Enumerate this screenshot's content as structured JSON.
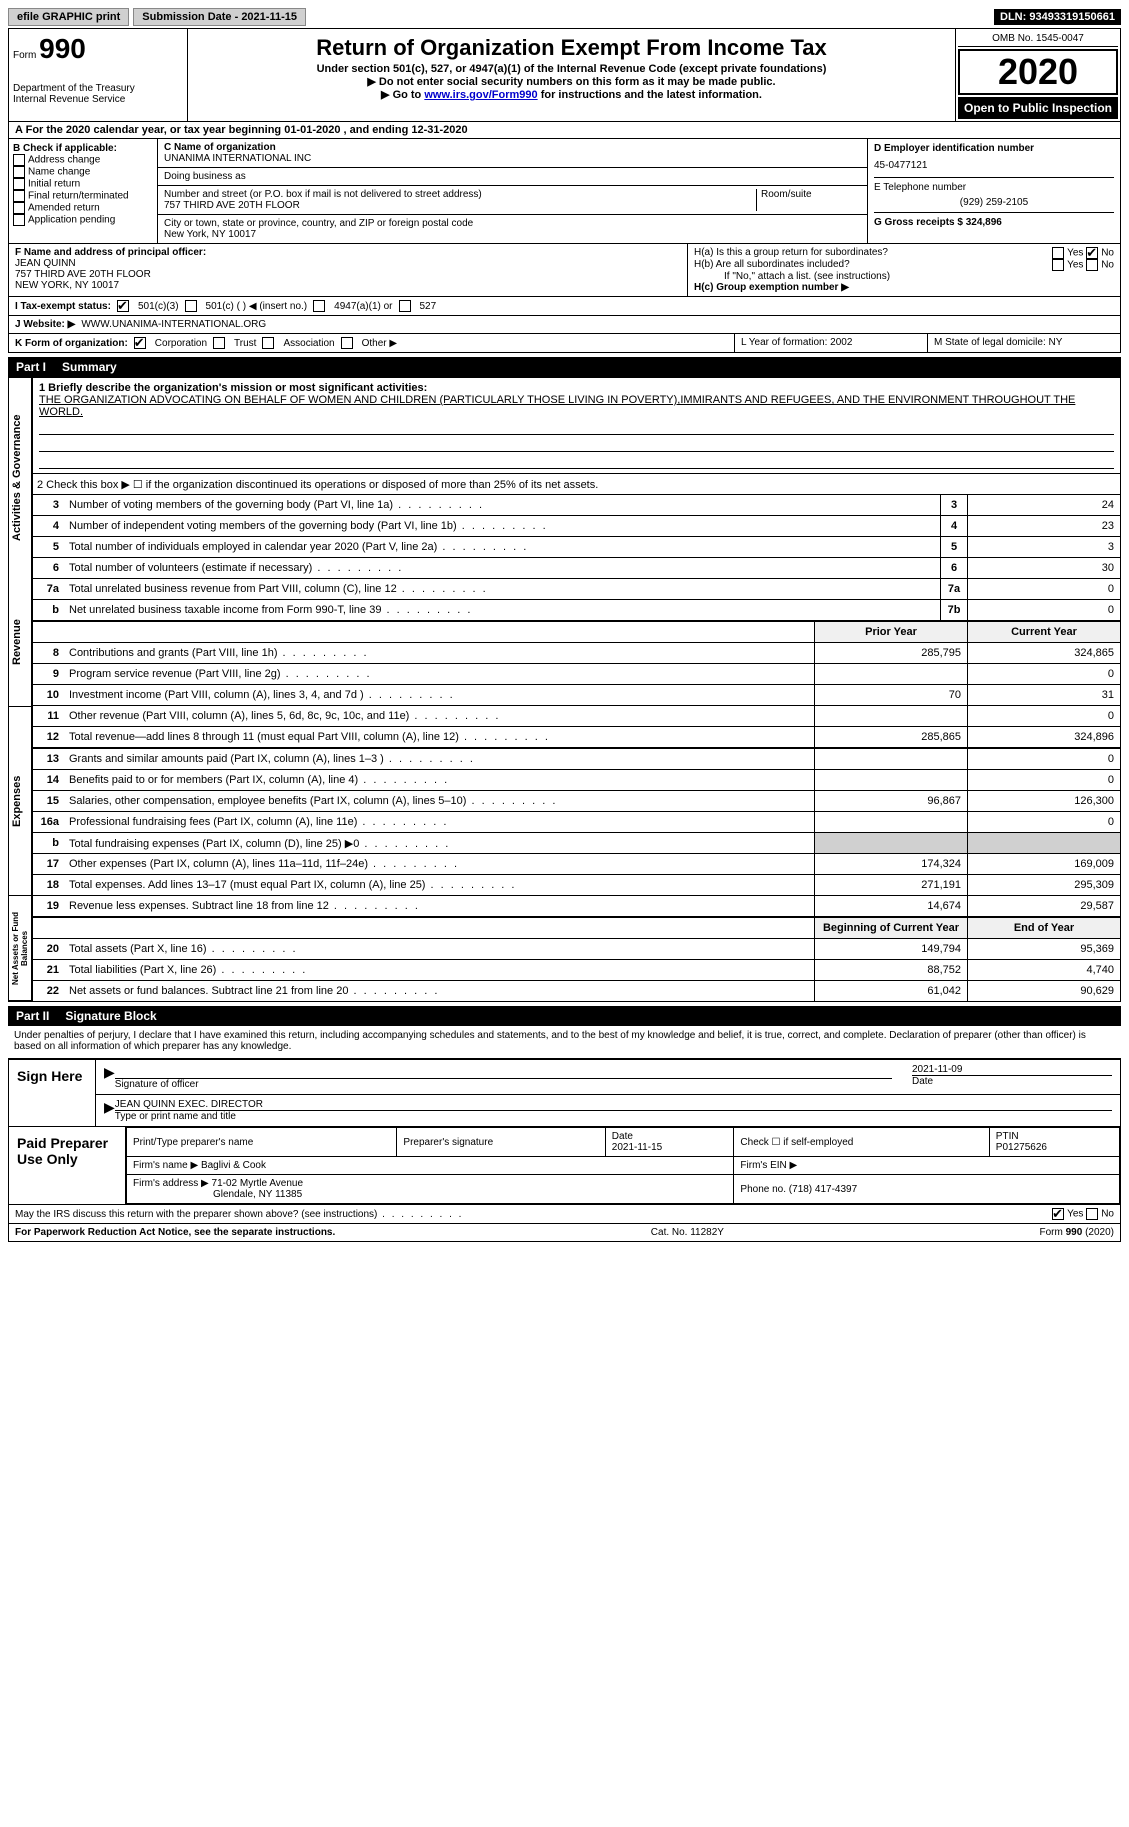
{
  "topbar": {
    "efile": "efile GRAPHIC print",
    "submission_label": "Submission Date - 2021-11-15",
    "dln": "DLN: 93493319150661"
  },
  "header": {
    "form_prefix": "Form",
    "form_number": "990",
    "dept": "Department of the Treasury",
    "irs": "Internal Revenue Service",
    "title": "Return of Organization Exempt From Income Tax",
    "subtitle": "Under section 501(c), 527, or 4947(a)(1) of the Internal Revenue Code (except private foundations)",
    "note1": "▶ Do not enter social security numbers on this form as it may be made public.",
    "note2_pre": "▶ Go to ",
    "note2_link": "www.irs.gov/Form990",
    "note2_post": " for instructions and the latest information.",
    "omb": "OMB No. 1545-0047",
    "year": "2020",
    "open": "Open to Public Inspection"
  },
  "rowA": "For the 2020 calendar year, or tax year beginning 01-01-2020  , and ending 12-31-2020",
  "colB": {
    "title": "B Check if applicable:",
    "items": [
      "Address change",
      "Name change",
      "Initial return",
      "Final return/terminated",
      "Amended return",
      "Application pending"
    ]
  },
  "colC": {
    "name_label": "C Name of organization",
    "name": "UNANIMA INTERNATIONAL INC",
    "dba_label": "Doing business as",
    "addr_label": "Number and street (or P.O. box if mail is not delivered to street address)",
    "room_label": "Room/suite",
    "addr": "757 THIRD AVE 20TH FLOOR",
    "city_label": "City or town, state or province, country, and ZIP or foreign postal code",
    "city": "New York, NY  10017"
  },
  "colD": {
    "ein_label": "D Employer identification number",
    "ein": "45-0477121",
    "phone_label": "E Telephone number",
    "phone": "(929) 259-2105",
    "gross_label": "G Gross receipts $ 324,896"
  },
  "sectionFH": {
    "f_label": "F Name and address of principal officer:",
    "f_name": "JEAN QUINN",
    "f_addr1": "757 THIRD AVE 20TH FLOOR",
    "f_addr2": "NEW YORK, NY  10017",
    "ha": "H(a)  Is this a group return for subordinates?",
    "ha_yes": "Yes",
    "ha_no": "No",
    "hb": "H(b)  Are all subordinates included?",
    "hb_note": "If \"No,\" attach a list. (see instructions)",
    "hc": "H(c)  Group exemption number ▶"
  },
  "rowI": {
    "label": "I  Tax-exempt status:",
    "opts": [
      "501(c)(3)",
      "501(c) (  ) ◀ (insert no.)",
      "4947(a)(1) or",
      "527"
    ]
  },
  "rowJ": {
    "label": "J  Website: ▶",
    "value": "WWW.UNANIMA-INTERNATIONAL.ORG"
  },
  "rowK": {
    "label": "K Form of organization:",
    "opts": [
      "Corporation",
      "Trust",
      "Association",
      "Other ▶"
    ],
    "l": "L Year of formation: 2002",
    "m": "M State of legal domicile: NY"
  },
  "part1": {
    "tag": "Part I",
    "title": "Summary"
  },
  "mission": {
    "q": "1  Briefly describe the organization's mission or most significant activities:",
    "text": "THE ORGANIZATION ADVOCATING ON BEHALF OF WOMEN AND CHILDREN (PARTICULARLY THOSE LIVING IN POVERTY),IMMIRANTS AND REFUGEES, AND THE ENVIRONMENT THROUGHOUT THE WORLD."
  },
  "gov": {
    "tab": "Activities & Governance",
    "l2": "2  Check this box ▶ ☐  if the organization discontinued its operations or disposed of more than 25% of its net assets.",
    "rows": [
      {
        "n": "3",
        "label": "Number of voting members of the governing body (Part VI, line 1a)",
        "box": "3",
        "val": "24"
      },
      {
        "n": "4",
        "label": "Number of independent voting members of the governing body (Part VI, line 1b)",
        "box": "4",
        "val": "23"
      },
      {
        "n": "5",
        "label": "Total number of individuals employed in calendar year 2020 (Part V, line 2a)",
        "box": "5",
        "val": "3"
      },
      {
        "n": "6",
        "label": "Total number of volunteers (estimate if necessary)",
        "box": "6",
        "val": "30"
      },
      {
        "n": "7a",
        "label": "Total unrelated business revenue from Part VIII, column (C), line 12",
        "box": "7a",
        "val": "0"
      },
      {
        "n": "b",
        "label": "Net unrelated business taxable income from Form 990-T, line 39",
        "box": "7b",
        "val": "0"
      }
    ]
  },
  "rev": {
    "tab": "Revenue",
    "head_prior": "Prior Year",
    "head_curr": "Current Year",
    "rows": [
      {
        "n": "8",
        "label": "Contributions and grants (Part VIII, line 1h)",
        "p": "285,795",
        "c": "324,865"
      },
      {
        "n": "9",
        "label": "Program service revenue (Part VIII, line 2g)",
        "p": "",
        "c": "0"
      },
      {
        "n": "10",
        "label": "Investment income (Part VIII, column (A), lines 3, 4, and 7d )",
        "p": "70",
        "c": "31"
      },
      {
        "n": "11",
        "label": "Other revenue (Part VIII, column (A), lines 5, 6d, 8c, 9c, 10c, and 11e)",
        "p": "",
        "c": "0"
      },
      {
        "n": "12",
        "label": "Total revenue—add lines 8 through 11 (must equal Part VIII, column (A), line 12)",
        "p": "285,865",
        "c": "324,896"
      }
    ]
  },
  "exp": {
    "tab": "Expenses",
    "rows": [
      {
        "n": "13",
        "label": "Grants and similar amounts paid (Part IX, column (A), lines 1–3 )",
        "p": "",
        "c": "0"
      },
      {
        "n": "14",
        "label": "Benefits paid to or for members (Part IX, column (A), line 4)",
        "p": "",
        "c": "0"
      },
      {
        "n": "15",
        "label": "Salaries, other compensation, employee benefits (Part IX, column (A), lines 5–10)",
        "p": "96,867",
        "c": "126,300"
      },
      {
        "n": "16a",
        "label": "Professional fundraising fees (Part IX, column (A), line 11e)",
        "p": "",
        "c": "0"
      },
      {
        "n": "b",
        "label": "Total fundraising expenses (Part IX, column (D), line 25) ▶0",
        "p": "grey",
        "c": "grey"
      },
      {
        "n": "17",
        "label": "Other expenses (Part IX, column (A), lines 11a–11d, 11f–24e)",
        "p": "174,324",
        "c": "169,009"
      },
      {
        "n": "18",
        "label": "Total expenses. Add lines 13–17 (must equal Part IX, column (A), line 25)",
        "p": "271,191",
        "c": "295,309"
      },
      {
        "n": "19",
        "label": "Revenue less expenses. Subtract line 18 from line 12",
        "p": "14,674",
        "c": "29,587"
      }
    ]
  },
  "net": {
    "tab": "Net Assets or Fund Balances",
    "head_prior": "Beginning of Current Year",
    "head_curr": "End of Year",
    "rows": [
      {
        "n": "20",
        "label": "Total assets (Part X, line 16)",
        "p": "149,794",
        "c": "95,369"
      },
      {
        "n": "21",
        "label": "Total liabilities (Part X, line 26)",
        "p": "88,752",
        "c": "4,740"
      },
      {
        "n": "22",
        "label": "Net assets or fund balances. Subtract line 21 from line 20",
        "p": "61,042",
        "c": "90,629"
      }
    ]
  },
  "part2": {
    "tag": "Part II",
    "title": "Signature Block"
  },
  "sig": {
    "decl": "Under penalties of perjury, I declare that I have examined this return, including accompanying schedules and statements, and to the best of my knowledge and belief, it is true, correct, and complete. Declaration of preparer (other than officer) is based on all information of which preparer has any knowledge.",
    "sign_here": "Sign Here",
    "sig_officer": "Signature of officer",
    "date": "2021-11-09",
    "date_label": "Date",
    "name_title": "JEAN QUINN  EXEC. DIRECTOR",
    "type_label": "Type or print name and title"
  },
  "prep": {
    "title": "Paid Preparer Use Only",
    "h1": "Print/Type preparer's name",
    "h2": "Preparer's signature",
    "h3": "Date",
    "h3v": "2021-11-15",
    "h4": "Check ☐ if self-employed",
    "h5": "PTIN",
    "h5v": "P01275626",
    "firm_name_l": "Firm's name  ▶",
    "firm_name": "Baglivi & Cook",
    "firm_ein_l": "Firm's EIN ▶",
    "firm_addr_l": "Firm's address ▶",
    "firm_addr1": "71-02 Myrtle Avenue",
    "firm_addr2": "Glendale, NY  11385",
    "phone_l": "Phone no. (718) 417-4397"
  },
  "footer": {
    "discuss": "May the IRS discuss this return with the preparer shown above? (see instructions)",
    "yes": "Yes",
    "no": "No",
    "pra": "For Paperwork Reduction Act Notice, see the separate instructions.",
    "cat": "Cat. No. 11282Y",
    "form": "Form 990 (2020)"
  }
}
